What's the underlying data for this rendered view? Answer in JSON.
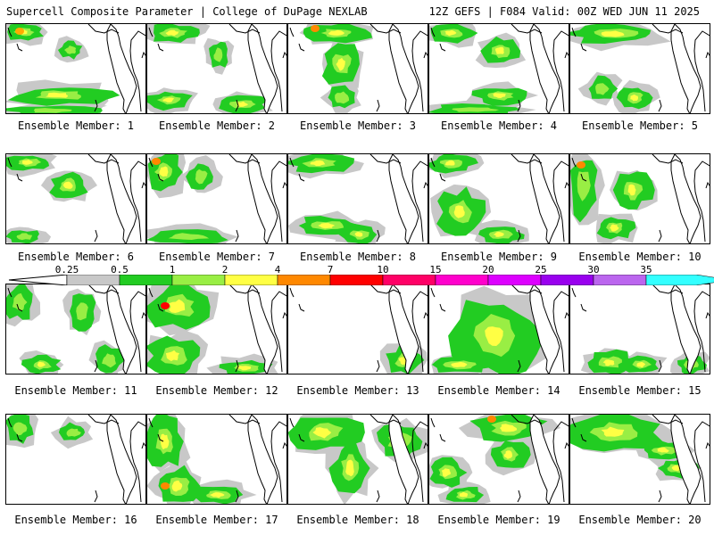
{
  "header": {
    "left": "Supercell Composite Parameter | College of DuPage NEXLAB",
    "right": "12Z GEFS | F084 Valid: 00Z WED JUN 11 2025"
  },
  "colorbar": {
    "ticks": [
      "0.25",
      "0.5",
      "1",
      "2",
      "4",
      "7",
      "10",
      "15",
      "20",
      "25",
      "30",
      "35"
    ],
    "colors": [
      "#c8c8c8",
      "#22cc22",
      "#99ee44",
      "#ffff44",
      "#ff8800",
      "#ff0000",
      "#ff0066",
      "#ff00cc",
      "#dd00ff",
      "#9900ee",
      "#bb66ee",
      "#33ffff"
    ]
  },
  "panels": [
    {
      "label": "Ensemble Member: 1"
    },
    {
      "label": "Ensemble Member: 2"
    },
    {
      "label": "Ensemble Member: 3"
    },
    {
      "label": "Ensemble Member: 4"
    },
    {
      "label": "Ensemble Member: 5"
    },
    {
      "label": "Ensemble Member: 6"
    },
    {
      "label": "Ensemble Member: 7"
    },
    {
      "label": "Ensemble Member: 8"
    },
    {
      "label": "Ensemble Member: 9"
    },
    {
      "label": "Ensemble Member: 10"
    },
    {
      "label": "Ensemble Member: 11"
    },
    {
      "label": "Ensemble Member: 12"
    },
    {
      "label": "Ensemble Member: 13"
    },
    {
      "label": "Ensemble Member: 14"
    },
    {
      "label": "Ensemble Member: 15"
    },
    {
      "label": "Ensemble Member: 16"
    },
    {
      "label": "Ensemble Member: 17"
    },
    {
      "label": "Ensemble Member: 18"
    },
    {
      "label": "Ensemble Member: 19"
    },
    {
      "label": "Ensemble Member: 20"
    }
  ]
}
